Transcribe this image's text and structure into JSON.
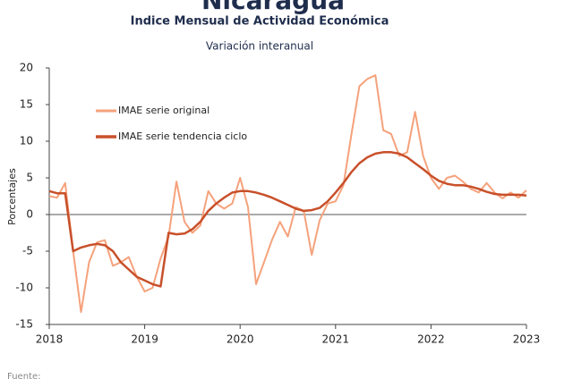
{
  "chart_data": {
    "type": "line",
    "title": "Nicaragua",
    "subtitle": "Indice Mensual de  Actividad Económica",
    "subtitle2": "Variación interanual",
    "y_label": "Porcentajes",
    "source": "Fuente:",
    "x": [
      2018,
      2018.083,
      2018.167,
      2018.25,
      2018.333,
      2018.417,
      2018.5,
      2018.583,
      2018.667,
      2018.75,
      2018.833,
      2018.917,
      2019,
      2019.083,
      2019.167,
      2019.25,
      2019.333,
      2019.417,
      2019.5,
      2019.583,
      2019.667,
      2019.75,
      2019.833,
      2019.917,
      2020,
      2020.083,
      2020.167,
      2020.25,
      2020.333,
      2020.417,
      2020.5,
      2020.583,
      2020.667,
      2020.75,
      2020.833,
      2020.917,
      2021,
      2021.083,
      2021.167,
      2021.25,
      2021.333,
      2021.417,
      2021.5,
      2021.583,
      2021.667,
      2021.75,
      2021.833,
      2021.917,
      2022,
      2022.083,
      2022.167,
      2022.25,
      2022.333,
      2022.417,
      2022.5,
      2022.583,
      2022.667,
      2022.75,
      2022.833,
      2022.917,
      2023
    ],
    "series": [
      {
        "name": "IMAE serie original",
        "color": "#f5a27c",
        "width": 2,
        "values": [
          2.5,
          2.3,
          4.3,
          -5,
          -13.3,
          -6.5,
          -3.8,
          -3.5,
          -7,
          -6.5,
          -5.8,
          -8.5,
          -10.5,
          -10,
          -6,
          -3,
          4.5,
          -1,
          -2.5,
          -1.5,
          3.2,
          1.5,
          0.8,
          1.5,
          5,
          1,
          -9.5,
          -6.5,
          -3.5,
          -1,
          -3,
          1,
          0.5,
          -5.5,
          -0.8,
          1.5,
          1.8,
          4,
          11,
          17.5,
          18.5,
          19,
          11.5,
          11,
          8,
          8.5,
          14,
          8,
          5,
          3.5,
          5,
          5.3,
          4.5,
          3.5,
          3,
          4.3,
          3,
          2.2,
          3,
          2.3,
          3.3
        ]
      },
      {
        "name": "IMAE serie  tendencia ciclo",
        "color": "#c8502a",
        "width": 2.5,
        "values": [
          3.2,
          2.9,
          2.9,
          -5,
          -4.5,
          -4.2,
          -4,
          -4.2,
          -5,
          -6.5,
          -7.5,
          -8.5,
          -9,
          -9.5,
          -9.8,
          -2.5,
          -2.7,
          -2.6,
          -2,
          -1,
          0.5,
          1.5,
          2.3,
          3,
          3.2,
          3.2,
          3,
          2.7,
          2.3,
          1.8,
          1.3,
          0.8,
          0.5,
          0.6,
          0.9,
          1.8,
          3,
          4.3,
          5.8,
          7,
          7.8,
          8.3,
          8.5,
          8.5,
          8.3,
          7.8,
          7,
          6.2,
          5.3,
          4.6,
          4.2,
          4,
          4,
          3.8,
          3.5,
          3.1,
          2.8,
          2.7,
          2.7,
          2.7,
          2.6
        ]
      }
    ],
    "xlim": [
      2018,
      2023
    ],
    "xticks": [
      2018,
      2019,
      2020,
      2021,
      2022,
      2023
    ],
    "ylim": [
      -15,
      20
    ],
    "yticks": [
      -15,
      -10,
      -5,
      0,
      5,
      10,
      15,
      20
    ],
    "grid": false,
    "zero_line": true,
    "legend": "upper left"
  }
}
